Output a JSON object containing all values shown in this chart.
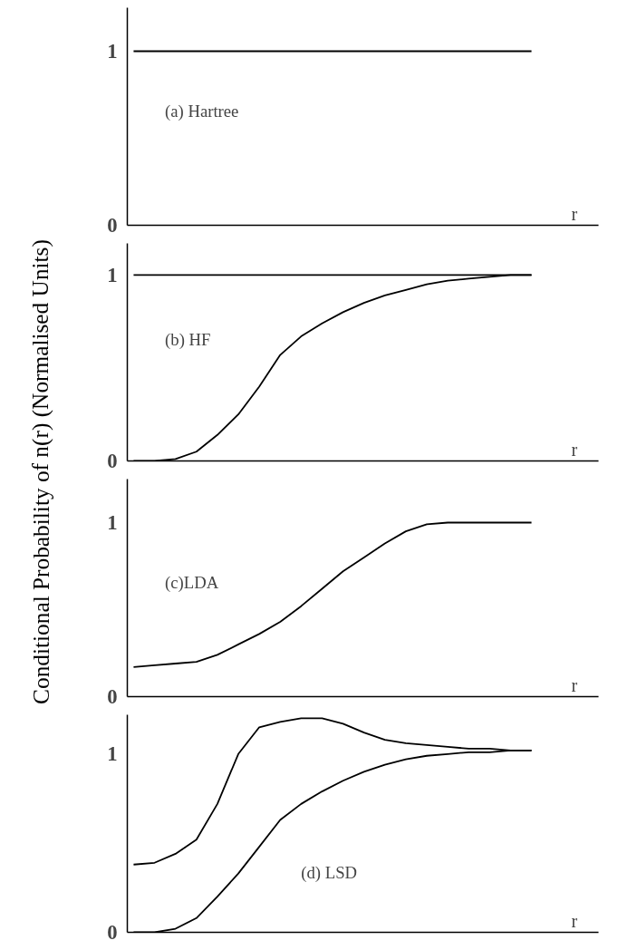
{
  "chart_data": [
    {
      "type": "line",
      "ylabel": "Conditional Probability of n(r) (Normalised Units)",
      "xlabel": "r",
      "annotations": [
        "(a) Hartree"
      ],
      "categories": [
        null,
        null,
        null,
        null,
        null,
        null,
        null,
        null,
        null,
        null,
        null,
        null,
        null,
        null,
        null,
        null,
        null,
        null,
        null,
        null
      ],
      "ylim": [
        0,
        1.25
      ],
      "yticks": [
        0,
        1
      ],
      "tick_labels": "y",
      "grid": false,
      "marker": "none",
      "line_style": "solid",
      "series": [
        {
          "color": "#000000",
          "values": [
            1,
            1,
            1,
            1,
            1,
            1,
            1,
            1,
            1,
            1,
            1,
            1,
            1,
            1,
            1,
            1,
            1,
            1,
            1,
            1
          ]
        }
      ]
    },
    {
      "type": "line",
      "xlabel": "r",
      "annotations": [
        "(b) HF"
      ],
      "categories": [
        null,
        null,
        null,
        null,
        null,
        null,
        null,
        null,
        null,
        null,
        null,
        null,
        null,
        null,
        null,
        null,
        null,
        null,
        null,
        null
      ],
      "ylim": [
        0,
        1.17
      ],
      "yticks": [
        0,
        1
      ],
      "tick_labels": "y",
      "grid": false,
      "marker": "none",
      "line_style": "solid",
      "series": [
        {
          "color": "#000000",
          "values": [
            1,
            1,
            1,
            1,
            1,
            1,
            1,
            1,
            1,
            1,
            1,
            1,
            1,
            1,
            1,
            1,
            1,
            1,
            1,
            1
          ]
        },
        {
          "color": "#000000",
          "values": [
            0,
            0,
            0.01,
            0.05,
            0.14,
            0.25,
            0.4,
            0.57,
            0.67,
            0.74,
            0.8,
            0.85,
            0.89,
            0.92,
            0.95,
            0.97,
            0.98,
            0.99,
            1,
            1
          ]
        }
      ]
    },
    {
      "type": "line",
      "xlabel": "r",
      "annotations": [
        "(c)LDA"
      ],
      "categories": [
        null,
        null,
        null,
        null,
        null,
        null,
        null,
        null,
        null,
        null,
        null,
        null,
        null,
        null,
        null,
        null,
        null,
        null,
        null,
        null
      ],
      "ylim": [
        0,
        1.25
      ],
      "yticks": [
        0,
        1
      ],
      "tick_labels": "y",
      "grid": false,
      "marker": "none",
      "line_style": "solid",
      "series": [
        {
          "color": "#000000",
          "values": [
            0.17,
            0.18,
            0.19,
            0.2,
            0.24,
            0.3,
            0.36,
            0.43,
            0.52,
            0.62,
            0.72,
            0.8,
            0.88,
            0.95,
            0.99,
            1,
            1,
            1,
            1,
            1
          ]
        }
      ]
    },
    {
      "type": "line",
      "xlabel": "r",
      "annotations": [
        "(d) LSD"
      ],
      "categories": [
        null,
        null,
        null,
        null,
        null,
        null,
        null,
        null,
        null,
        null,
        null,
        null,
        null,
        null,
        null,
        null,
        null,
        null,
        null,
        null
      ],
      "ylim": [
        0,
        1.22
      ],
      "yticks": [
        0,
        1
      ],
      "tick_labels": "y",
      "grid": false,
      "marker": "none",
      "line_style": "solid",
      "series": [
        {
          "color": "#000000",
          "values": [
            0.38,
            0.39,
            0.44,
            0.52,
            0.72,
            1,
            1.15,
            1.18,
            1.2,
            1.2,
            1.17,
            1.12,
            1.08,
            1.06,
            1.05,
            1.04,
            1.03,
            1.03,
            1.02,
            1.02
          ]
        },
        {
          "color": "#000000",
          "values": [
            0,
            0,
            0.02,
            0.08,
            0.2,
            0.33,
            0.48,
            0.63,
            0.72,
            0.79,
            0.85,
            0.9,
            0.94,
            0.97,
            0.99,
            1,
            1.01,
            1.01,
            1.02,
            1.02
          ]
        }
      ]
    }
  ]
}
